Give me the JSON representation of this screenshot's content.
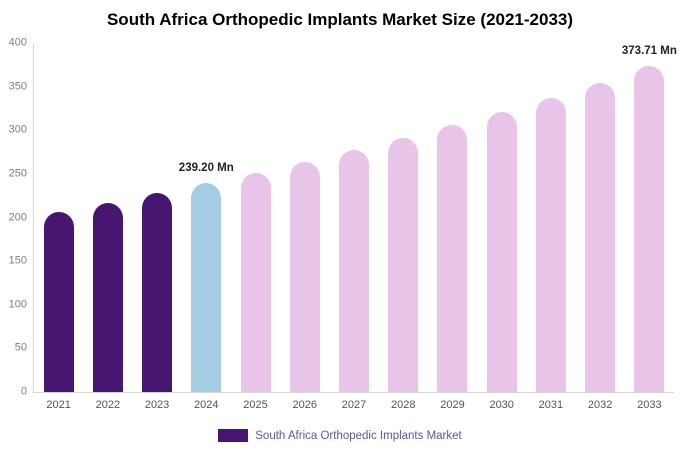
{
  "header": {
    "title": "South Africa Orthopedic Implants Market Size (2021-2033)"
  },
  "legend": {
    "label": "South Africa Orthopedic Implants Market"
  },
  "colors": {
    "past": "#471671",
    "current": "#a4cde4",
    "forecast": "#e8c4e8",
    "axis_line": "#d6d6d6",
    "tick_text": "#808080",
    "annotation_text": "#222222",
    "legend_text": "#6a4fa2"
  },
  "chart_data": {
    "type": "bar",
    "title": "South Africa Orthopedic Implants Market Size (2021-2033)",
    "xlabel": "",
    "ylabel": "",
    "ylim": [
      0,
      400
    ],
    "yticks": [
      0,
      50,
      100,
      150,
      200,
      250,
      300,
      350,
      400
    ],
    "grid": false,
    "legend_position": "bottom",
    "categories": [
      "2021",
      "2022",
      "2023",
      "2024",
      "2025",
      "2026",
      "2027",
      "2028",
      "2029",
      "2030",
      "2031",
      "2032",
      "2033"
    ],
    "values": [
      206.6,
      216.9,
      227.9,
      239.2,
      251.2,
      263.9,
      277.1,
      291.1,
      305.7,
      321.1,
      337.2,
      354.2,
      373.71
    ],
    "color_roles": [
      "past",
      "past",
      "past",
      "current",
      "forecast",
      "forecast",
      "forecast",
      "forecast",
      "forecast",
      "forecast",
      "forecast",
      "forecast",
      "forecast"
    ],
    "annotations": [
      {
        "category": "2024",
        "text": "239.20 Mn"
      },
      {
        "category": "2033",
        "text": "373.71 Mn"
      }
    ],
    "series_name": "South Africa Orthopedic Implants Market"
  }
}
